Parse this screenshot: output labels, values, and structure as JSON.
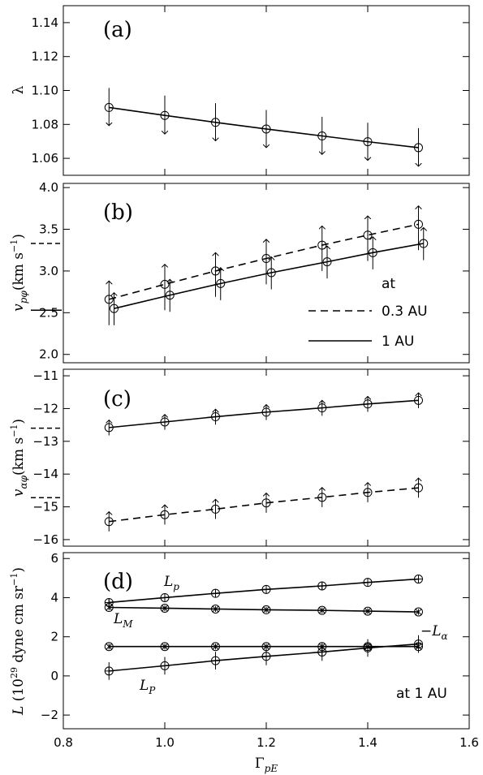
{
  "chart_data": [
    {
      "type": "line",
      "panel_letter": "(a)",
      "ylabel": "λ",
      "ylim": [
        1.05,
        1.15
      ],
      "yticks": [
        "1.06",
        "1.08",
        "1.10",
        "1.12",
        "1.14"
      ],
      "xlim": [
        0.8,
        1.6
      ],
      "series": [
        {
          "style": "solid",
          "x": [
            0.89,
            1.0,
            1.1,
            1.2,
            1.31,
            1.4,
            1.5
          ],
          "y": [
            1.09,
            1.0853,
            1.0812,
            1.0773,
            1.0732,
            1.0698,
            1.0663
          ],
          "bar_up": [
            1.1015,
            1.097,
            1.0925,
            1.0885,
            1.0845,
            1.081,
            1.0778
          ],
          "bar_down": [
            1.0793,
            1.0743,
            1.0703,
            1.0663,
            1.0623,
            1.0588,
            1.0553
          ],
          "arrow": "down"
        }
      ]
    },
    {
      "type": "line",
      "panel_letter": "(b)",
      "ylabel_main": "v",
      "ylabel_sub": "pφ",
      "ylabel_unit": "(km s",
      "ylabel_sup": "−1",
      "ylabel_close": ")",
      "ylim": [
        1.9,
        4.05
      ],
      "yticks": [
        "2.0",
        "2.5",
        "3.0",
        "3.5",
        "4.0"
      ],
      "xlim": [
        0.8,
        1.6
      ],
      "left_markers": [
        3.33,
        2.53
      ],
      "series": [
        {
          "name": "0.3 AU",
          "style": "dashed",
          "x": [
            0.89,
            1.0,
            1.1,
            1.2,
            1.31,
            1.4,
            1.5
          ],
          "y": [
            2.66,
            2.84,
            3.0,
            3.15,
            3.31,
            3.43,
            3.56
          ],
          "bar_up": [
            2.88,
            3.08,
            3.22,
            3.38,
            3.54,
            3.66,
            3.78
          ],
          "bar_down": [
            2.35,
            2.53,
            2.69,
            2.84,
            3.0,
            3.12,
            3.25
          ],
          "arrow": "up"
        },
        {
          "name": "1 AU",
          "style": "solid",
          "x": [
            0.9,
            1.01,
            1.11,
            1.21,
            1.32,
            1.41,
            1.51
          ],
          "y": [
            2.55,
            2.71,
            2.85,
            2.98,
            3.11,
            3.22,
            3.33
          ],
          "bar_up": [
            2.74,
            2.9,
            3.04,
            3.17,
            3.3,
            3.41,
            3.52
          ],
          "bar_down": [
            2.35,
            2.51,
            2.65,
            2.78,
            2.91,
            3.02,
            3.13
          ],
          "arrow": "up"
        }
      ],
      "legend_title": "at",
      "legend_position": "bottom-right"
    },
    {
      "type": "line",
      "panel_letter": "(c)",
      "ylabel_main": "v",
      "ylabel_sub": "αφ",
      "ylabel_unit": "(km s",
      "ylabel_sup": "−1",
      "ylabel_close": ")",
      "ylim": [
        -16.2,
        -10.8
      ],
      "yticks": [
        "−11",
        "−12",
        "−13",
        "−14",
        "−15",
        "−16"
      ],
      "ytick_values": [
        -11,
        -12,
        -13,
        -14,
        -15,
        -16
      ],
      "xlim": [
        0.8,
        1.6
      ],
      "left_markers": [
        -12.6,
        -14.72
      ],
      "series": [
        {
          "style": "solid",
          "x": [
            0.89,
            1.0,
            1.1,
            1.2,
            1.31,
            1.4,
            1.5
          ],
          "y": [
            -12.58,
            -12.41,
            -12.25,
            -12.11,
            -11.98,
            -11.86,
            -11.75
          ],
          "bar_up": [
            -12.35,
            -12.18,
            -12.02,
            -11.88,
            -11.75,
            -11.63,
            -11.52
          ],
          "bar_down": [
            -12.82,
            -12.65,
            -12.49,
            -12.35,
            -12.22,
            -12.1,
            -11.99
          ],
          "arrow": "up"
        },
        {
          "style": "dashed",
          "x": [
            0.89,
            1.0,
            1.1,
            1.2,
            1.31,
            1.4,
            1.5
          ],
          "y": [
            -15.45,
            -15.24,
            -15.07,
            -14.88,
            -14.71,
            -14.56,
            -14.42
          ],
          "bar_up": [
            -15.15,
            -14.94,
            -14.77,
            -14.58,
            -14.41,
            -14.26,
            -14.12
          ],
          "bar_down": [
            -15.75,
            -15.54,
            -15.37,
            -15.18,
            -15.01,
            -14.86,
            -14.72
          ],
          "arrow": "up"
        }
      ]
    },
    {
      "type": "line",
      "panel_letter": "(d)",
      "ylabel_main": "L",
      "ylabel_unit": " (10",
      "ylabel_sup": "29",
      "ylabel_rest": " dyne cm sr",
      "ylabel_sup2": "−1",
      "ylabel_close": ")",
      "ylim": [
        -2.7,
        6.3
      ],
      "yticks": [
        "−2",
        "0",
        "2",
        "4",
        "6"
      ],
      "ytick_values": [
        -2,
        0,
        2,
        4,
        6
      ],
      "xlim": [
        0.8,
        1.6
      ],
      "xticks": [
        "0.8",
        "1.0",
        "1.2",
        "1.4",
        "1.6"
      ],
      "xlabel_main": "Γ",
      "xlabel_sub": "pE",
      "annotation": "at 1 AU",
      "series": [
        {
          "name_main": "L",
          "name_sub": "p",
          "name_prefix": "",
          "style": "solid",
          "x": [
            0.89,
            1.0,
            1.1,
            1.2,
            1.31,
            1.4,
            1.5
          ],
          "y": [
            3.75,
            4.0,
            4.22,
            4.42,
            4.6,
            4.78,
            4.95
          ],
          "err": 0.22,
          "marker": "circle-plus"
        },
        {
          "name_main": "L",
          "name_sub": "α",
          "name_prefix": "−",
          "style": "solid",
          "x": [
            0.89,
            1.0,
            1.1,
            1.2,
            1.31,
            1.4,
            1.5
          ],
          "y": [
            3.5,
            3.46,
            3.42,
            3.38,
            3.35,
            3.31,
            3.27
          ],
          "err": 0.15,
          "marker": "circle-x"
        },
        {
          "name_main": "L",
          "name_sub": "M",
          "name_prefix": "",
          "style": "solid",
          "x": [
            0.89,
            1.0,
            1.1,
            1.2,
            1.31,
            1.4,
            1.5
          ],
          "y": [
            1.5,
            1.5,
            1.5,
            1.5,
            1.5,
            1.5,
            1.5
          ],
          "err": 0.15,
          "marker": "circle-x"
        },
        {
          "name_main": "L",
          "name_sub": "P",
          "name_prefix": "",
          "style": "solid",
          "x": [
            0.89,
            1.0,
            1.1,
            1.2,
            1.31,
            1.4,
            1.5
          ],
          "y": [
            0.25,
            0.52,
            0.78,
            1.0,
            1.22,
            1.43,
            1.63
          ],
          "err": 0.45,
          "marker": "circle-plus"
        }
      ]
    }
  ]
}
